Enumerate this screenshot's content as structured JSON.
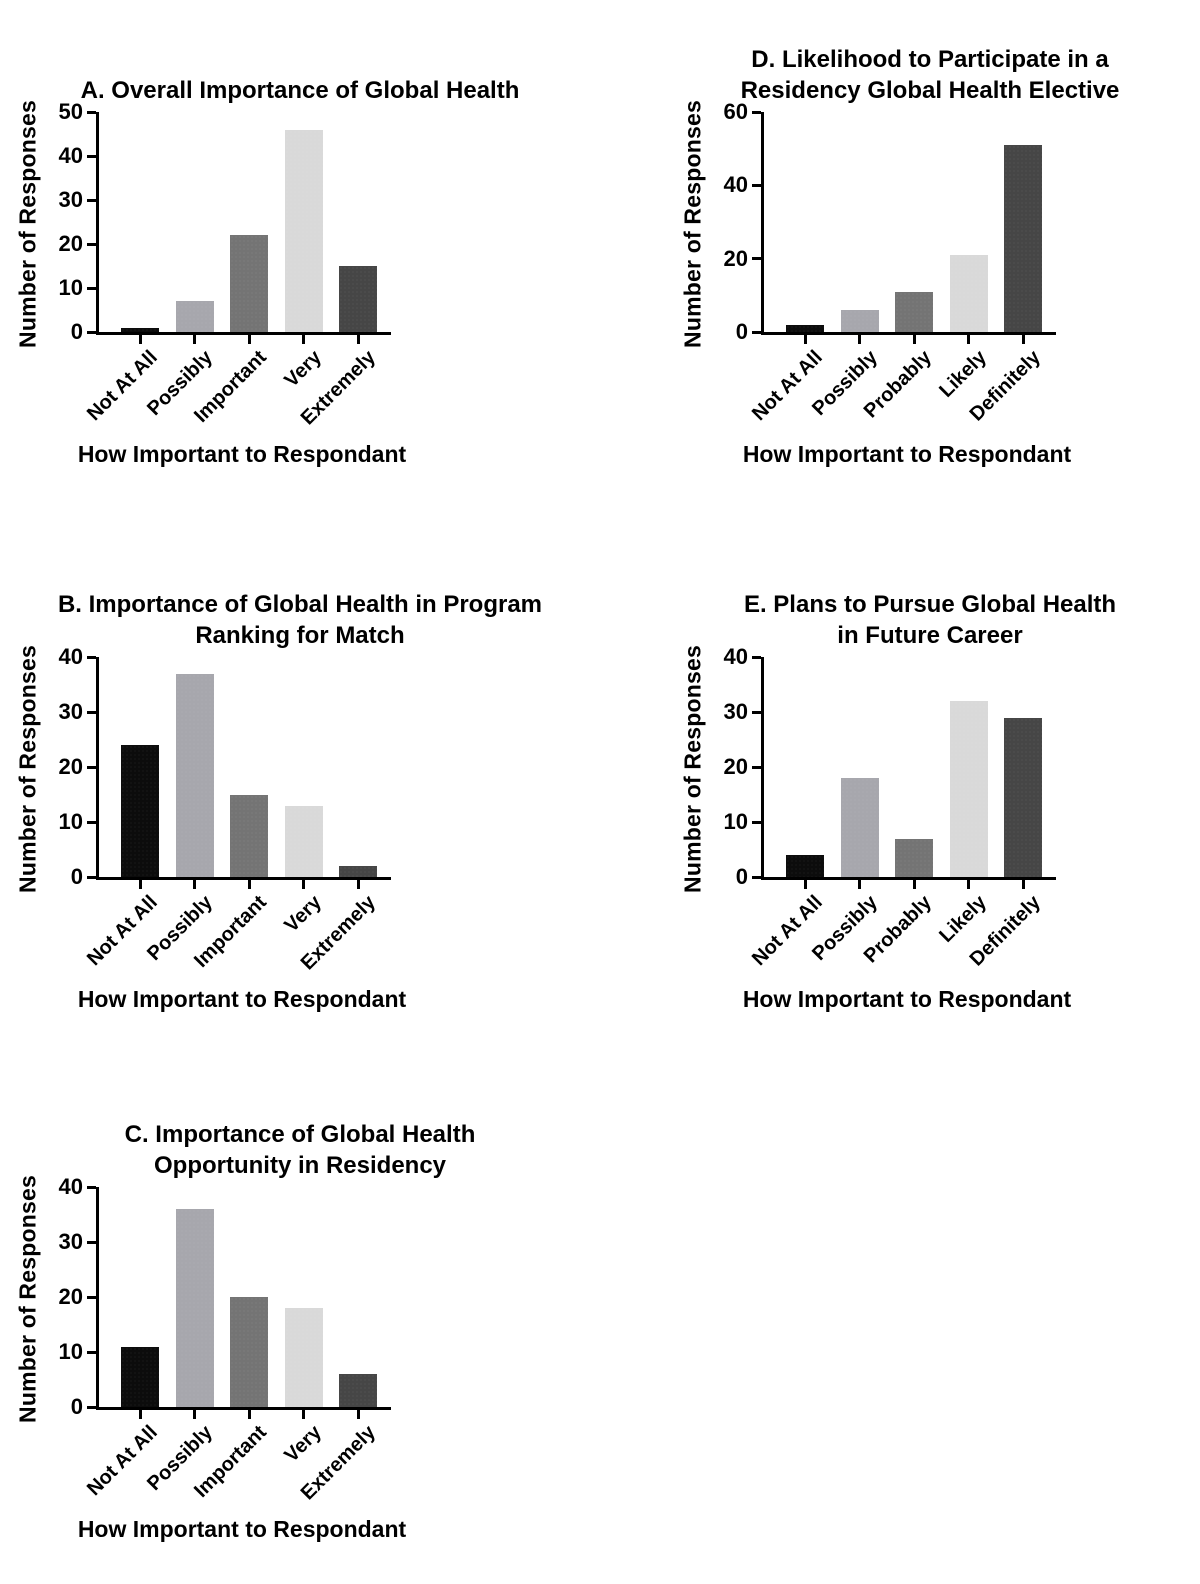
{
  "figure": {
    "background": "#ffffff",
    "text_color": "#000000",
    "axis_color": "#000000"
  },
  "bar_palette": [
    "#0c0c0c",
    "#a7a7ad",
    "#747474",
    "#d9d9d9",
    "#464646"
  ],
  "chart_data": [
    {
      "id": "A",
      "type": "bar",
      "title": "A. Overall Importance of Global Health",
      "ylabel": "Number of Responses",
      "xlabel": "How Important to Respondant",
      "categories": [
        "Not At All",
        "Possibly",
        "Important",
        "Very",
        "Extremely"
      ],
      "values": [
        1,
        7,
        22,
        46,
        15
      ],
      "ylim": [
        0,
        50
      ],
      "ytick_step": 10,
      "grid": false,
      "legend": "none"
    },
    {
      "id": "B",
      "type": "bar",
      "title": "B. Importance of Global Health in Program\nRanking for Match",
      "ylabel": "Number of Responses",
      "xlabel": "How Important to Respondant",
      "categories": [
        "Not At All",
        "Possibly",
        "Important",
        "Very",
        "Extremely"
      ],
      "values": [
        24,
        37,
        15,
        13,
        2
      ],
      "ylim": [
        0,
        40
      ],
      "ytick_step": 10,
      "grid": false,
      "legend": "none"
    },
    {
      "id": "C",
      "type": "bar",
      "title": "C. Importance of Global Health\nOpportunity in Residency",
      "ylabel": "Number of Responses",
      "xlabel": "How Important to Respondant",
      "categories": [
        "Not At All",
        "Possibly",
        "Important",
        "Very",
        "Extremely"
      ],
      "values": [
        11,
        36,
        20,
        18,
        6
      ],
      "ylim": [
        0,
        40
      ],
      "ytick_step": 10,
      "grid": false,
      "legend": "none"
    },
    {
      "id": "D",
      "type": "bar",
      "title": "D. Likelihood to Participate in a\nResidency Global Health Elective",
      "ylabel": "Number of Responses",
      "xlabel": "How Important to Respondant",
      "categories": [
        "Not At All",
        "Possibly",
        "Probably",
        "Likely",
        "Definitely"
      ],
      "values": [
        2,
        6,
        11,
        21,
        51
      ],
      "ylim": [
        0,
        60
      ],
      "ytick_step": 20,
      "grid": false,
      "legend": "none"
    },
    {
      "id": "E",
      "type": "bar",
      "title": "E. Plans to Pursue Global Health\nin Future Career",
      "ylabel": "Number of Responses",
      "xlabel": "How Important to Respondant",
      "categories": [
        "Not At All",
        "Possibly",
        "Probably",
        "Likely",
        "Definitely"
      ],
      "values": [
        4,
        18,
        7,
        32,
        29
      ],
      "ylim": [
        0,
        40
      ],
      "ytick_step": 10,
      "grid": false,
      "legend": "none"
    }
  ]
}
